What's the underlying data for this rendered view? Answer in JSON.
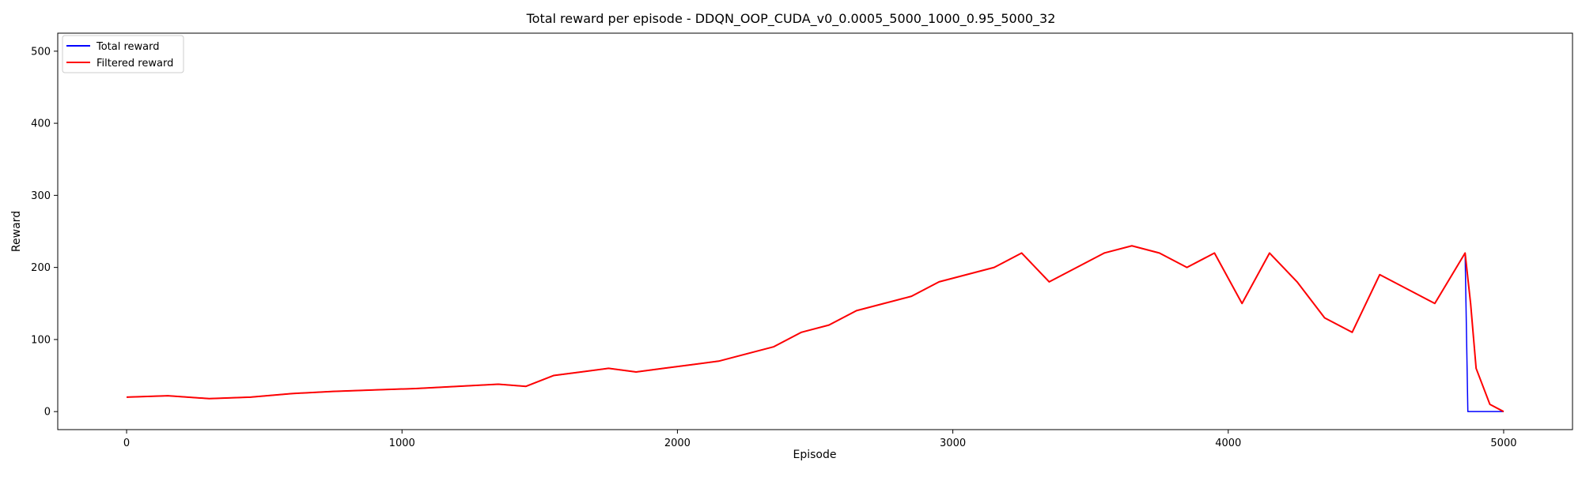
{
  "chart_data": {
    "type": "line",
    "title": "Total reward per episode - DDQN_OOP_CUDA_v0_0.0005_5000_1000_0.95_5000_32",
    "xlabel": "Episode",
    "ylabel": "Reward",
    "xlim": [
      -250,
      5250
    ],
    "ylim": [
      -25,
      525
    ],
    "xticks": [
      0,
      1000,
      2000,
      3000,
      4000,
      5000
    ],
    "yticks": [
      0,
      100,
      200,
      300,
      400,
      500
    ],
    "xtick_labels": [
      "0",
      "1000",
      "2000",
      "3000",
      "4000",
      "5000"
    ],
    "ytick_labels": [
      "0",
      "100",
      "200",
      "300",
      "400",
      "500"
    ],
    "legend_position": "top-left",
    "grid": false,
    "series": [
      {
        "name": "Total reward",
        "color": "#0000ff",
        "x": [
          0,
          150,
          300,
          450,
          600,
          750,
          900,
          1050,
          1200,
          1350,
          1450,
          1550,
          1650,
          1750,
          1850,
          1950,
          2050,
          2150,
          2250,
          2350,
          2450,
          2550,
          2650,
          2750,
          2850,
          2950,
          3050,
          3150,
          3250,
          3350,
          3450,
          3550,
          3650,
          3750,
          3850,
          3950,
          4050,
          4150,
          4250,
          4350,
          4450,
          4550,
          4650,
          4750,
          4860,
          4870,
          5000
        ],
        "y": [
          20,
          22,
          18,
          20,
          25,
          28,
          30,
          32,
          35,
          38,
          35,
          50,
          55,
          60,
          55,
          60,
          65,
          70,
          80,
          90,
          110,
          120,
          140,
          150,
          160,
          180,
          190,
          200,
          220,
          180,
          200,
          220,
          230,
          220,
          200,
          220,
          150,
          220,
          180,
          130,
          110,
          190,
          170,
          150,
          220,
          0,
          0
        ]
      },
      {
        "name": "Filtered reward",
        "color": "#ff0000",
        "x": [
          0,
          150,
          300,
          450,
          600,
          750,
          900,
          1050,
          1200,
          1350,
          1450,
          1550,
          1650,
          1750,
          1850,
          1950,
          2050,
          2150,
          2250,
          2350,
          2450,
          2550,
          2650,
          2750,
          2850,
          2950,
          3050,
          3150,
          3250,
          3350,
          3450,
          3550,
          3650,
          3750,
          3850,
          3950,
          4050,
          4150,
          4250,
          4350,
          4450,
          4550,
          4650,
          4750,
          4860,
          4880,
          4900,
          4950,
          5000
        ],
        "y": [
          20,
          22,
          18,
          20,
          25,
          28,
          30,
          32,
          35,
          38,
          35,
          50,
          55,
          60,
          55,
          60,
          65,
          70,
          80,
          90,
          110,
          120,
          140,
          150,
          160,
          180,
          190,
          200,
          220,
          180,
          200,
          220,
          230,
          220,
          200,
          220,
          150,
          220,
          180,
          130,
          110,
          190,
          170,
          150,
          220,
          150,
          60,
          10,
          0
        ]
      }
    ]
  }
}
